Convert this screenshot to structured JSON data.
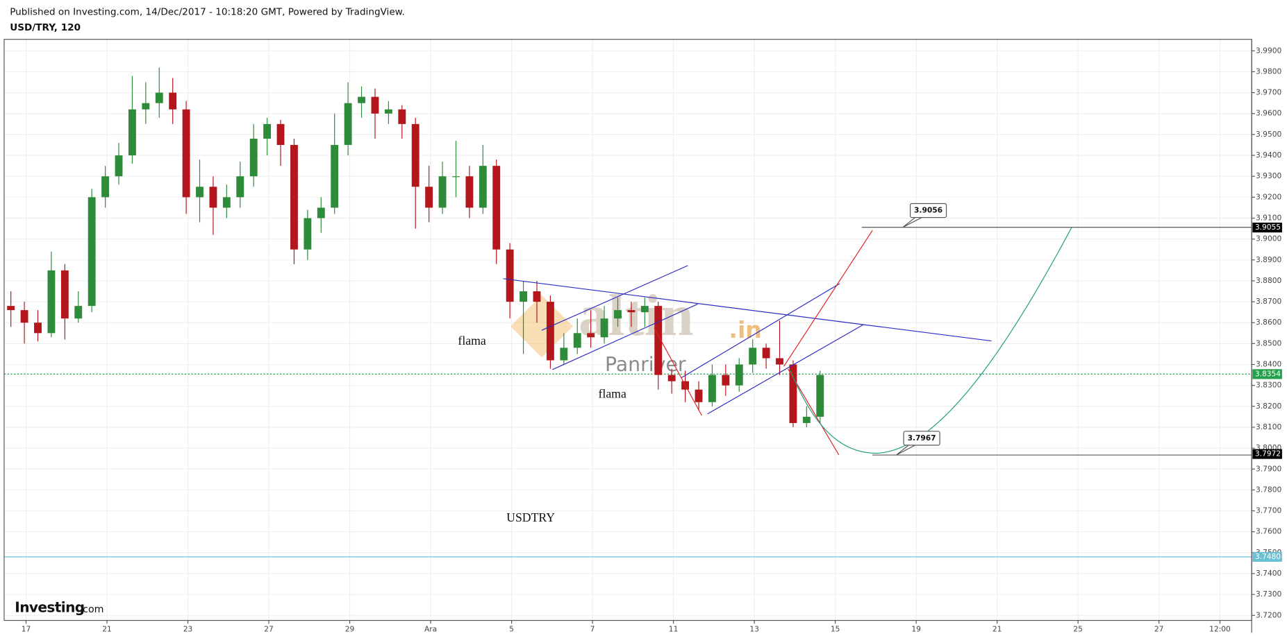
{
  "header": {
    "published": "Published on Investing.com, 14/Dec/2017 - 10:18:20 GMT, Powered by TradingView.",
    "symbol": "USD/TRY, 120"
  },
  "logo": [
    "Investing",
    ".com"
  ],
  "chart_data": {
    "type": "candlestick",
    "x": [
      2,
      6,
      10,
      14,
      18,
      22,
      26,
      30,
      34,
      38,
      42,
      46,
      50,
      54,
      58,
      62,
      66,
      70,
      74,
      78,
      82,
      86,
      90,
      94,
      98,
      102,
      106,
      110,
      114,
      118,
      122,
      126,
      130,
      134,
      138,
      142,
      146,
      150,
      154,
      158,
      162,
      166,
      170,
      174,
      178,
      182,
      186,
      190,
      194,
      198,
      202,
      206,
      210,
      214,
      218,
      222,
      226,
      230,
      234,
      238,
      242
    ],
    "open": [
      3.868,
      3.866,
      3.86,
      3.855,
      3.885,
      3.862,
      3.868,
      3.92,
      3.93,
      3.94,
      3.962,
      3.965,
      3.97,
      3.962,
      3.92,
      3.925,
      3.915,
      3.92,
      3.93,
      3.948,
      3.955,
      3.945,
      3.895,
      3.91,
      3.915,
      3.945,
      3.965,
      3.968,
      3.96,
      3.962,
      3.955,
      3.925,
      3.915,
      3.93,
      3.93,
      3.915,
      3.935,
      3.895,
      3.87,
      3.875,
      3.87,
      3.842,
      3.848,
      3.855,
      3.853,
      3.862,
      3.866,
      3.865,
      3.868,
      3.835,
      3.832,
      3.828,
      3.822,
      3.835,
      3.83,
      3.84,
      3.848,
      3.843,
      3.84,
      3.812,
      3.815
    ],
    "high": [
      3.875,
      3.87,
      3.866,
      3.894,
      3.888,
      3.875,
      3.924,
      3.935,
      3.946,
      3.978,
      3.975,
      3.982,
      3.977,
      3.966,
      3.938,
      3.93,
      3.926,
      3.937,
      3.955,
      3.958,
      3.957,
      3.948,
      3.914,
      3.92,
      3.96,
      3.975,
      3.973,
      3.972,
      3.966,
      3.964,
      3.958,
      3.935,
      3.937,
      3.947,
      3.935,
      3.945,
      3.938,
      3.898,
      3.88,
      3.88,
      3.873,
      3.855,
      3.862,
      3.866,
      3.868,
      3.872,
      3.87,
      3.872,
      3.87,
      3.838,
      3.837,
      3.832,
      3.84,
      3.84,
      3.843,
      3.852,
      3.85,
      3.861,
      3.842,
      3.82,
      3.837
    ],
    "low": [
      3.858,
      3.85,
      3.851,
      3.853,
      3.852,
      3.86,
      3.865,
      3.915,
      3.926,
      3.936,
      3.955,
      3.958,
      3.955,
      3.912,
      3.908,
      3.902,
      3.91,
      3.915,
      3.925,
      3.94,
      3.935,
      3.888,
      3.89,
      3.903,
      3.912,
      3.94,
      3.958,
      3.948,
      3.955,
      3.948,
      3.905,
      3.908,
      3.912,
      3.92,
      3.91,
      3.912,
      3.888,
      3.862,
      3.845,
      3.86,
      3.838,
      3.84,
      3.845,
      3.848,
      3.85,
      3.858,
      3.858,
      3.858,
      3.828,
      3.826,
      3.822,
      3.818,
      3.82,
      3.825,
      3.827,
      3.836,
      3.838,
      3.835,
      3.81,
      3.81,
      3.812
    ],
    "close": [
      3.866,
      3.86,
      3.855,
      3.885,
      3.862,
      3.868,
      3.92,
      3.93,
      3.94,
      3.962,
      3.965,
      3.97,
      3.962,
      3.92,
      3.925,
      3.915,
      3.92,
      3.93,
      3.948,
      3.955,
      3.945,
      3.895,
      3.91,
      3.915,
      3.945,
      3.965,
      3.968,
      3.96,
      3.962,
      3.955,
      3.925,
      3.915,
      3.93,
      3.93,
      3.915,
      3.935,
      3.895,
      3.87,
      3.875,
      3.87,
      3.842,
      3.848,
      3.855,
      3.853,
      3.862,
      3.866,
      3.865,
      3.868,
      3.835,
      3.832,
      3.828,
      3.822,
      3.835,
      3.83,
      3.84,
      3.848,
      3.843,
      3.84,
      3.812,
      3.815,
      3.835
    ],
    "up_color": "#2e8b3a",
    "down_color": "#b3161b",
    "xlim": [
      0,
      370
    ],
    "xticks": [
      {
        "value": 6.5,
        "label": "17"
      },
      {
        "value": 30.5,
        "label": "21"
      },
      {
        "value": 54.5,
        "label": "23"
      },
      {
        "value": 78.5,
        "label": "27"
      },
      {
        "value": 102.5,
        "label": "29"
      },
      {
        "value": 126.5,
        "label": "Ara"
      },
      {
        "value": 150.5,
        "label": "5"
      },
      {
        "value": 174.5,
        "label": "7"
      },
      {
        "value": 198.5,
        "label": "11"
      },
      {
        "value": 222.5,
        "label": "13"
      },
      {
        "value": 246.5,
        "label": "15"
      },
      {
        "value": 270.5,
        "label": "19"
      },
      {
        "value": 294.5,
        "label": "21"
      },
      {
        "value": 318.5,
        "label": "25"
      },
      {
        "value": 342.5,
        "label": "27"
      },
      {
        "value": 360.6,
        "label": "12:00"
      }
    ],
    "ylim": [
      3.7176,
      3.9955
    ],
    "yticks": [
      {
        "value": 3.72,
        "label": "3.7200"
      },
      {
        "value": 3.73,
        "label": "3.7300"
      },
      {
        "value": 3.74,
        "label": "3.7400"
      },
      {
        "value": 3.75,
        "label": "3.7500"
      },
      {
        "value": 3.76,
        "label": "3.7600"
      },
      {
        "value": 3.77,
        "label": "3.7700"
      },
      {
        "value": 3.78,
        "label": "3.7800"
      },
      {
        "value": 3.79,
        "label": "3.7900"
      },
      {
        "value": 3.8,
        "label": "3.8000"
      },
      {
        "value": 3.81,
        "label": "3.8100"
      },
      {
        "value": 3.82,
        "label": "3.8200"
      },
      {
        "value": 3.83,
        "label": "3.8300"
      },
      {
        "value": 3.84,
        "label": "3.8400"
      },
      {
        "value": 3.85,
        "label": "3.8500"
      },
      {
        "value": 3.86,
        "label": "3.8600"
      },
      {
        "value": 3.87,
        "label": "3.8700"
      },
      {
        "value": 3.88,
        "label": "3.8800"
      },
      {
        "value": 3.89,
        "label": "3.8900"
      },
      {
        "value": 3.9,
        "label": "3.9000"
      },
      {
        "value": 3.91,
        "label": "3.9100"
      },
      {
        "value": 3.92,
        "label": "3.9200"
      },
      {
        "value": 3.93,
        "label": "3.9300"
      },
      {
        "value": 3.94,
        "label": "3.9400"
      },
      {
        "value": 3.95,
        "label": "3.9500"
      },
      {
        "value": 3.96,
        "label": "3.9600"
      },
      {
        "value": 3.97,
        "label": "3.9700"
      },
      {
        "value": 3.98,
        "label": "3.9800"
      },
      {
        "value": 3.99,
        "label": "3.9900"
      }
    ],
    "grid": true,
    "price_labels": [
      {
        "value": 3.9055,
        "color": "#000000"
      },
      {
        "value": 3.8354,
        "color": "#22a04b",
        "line": "dotted"
      },
      {
        "value": 3.7972,
        "color": "#000000"
      },
      {
        "value": 3.748,
        "label": "3.7480",
        "color": "#6cc0d4",
        "line": "solid"
      }
    ],
    "callouts": [
      {
        "value": 3.9056
      },
      {
        "value": 3.7967
      }
    ],
    "annotations": [
      "flama",
      "flama",
      "USDTRY"
    ],
    "watermark": [
      "altin",
      ".in",
      "Panriver"
    ]
  }
}
